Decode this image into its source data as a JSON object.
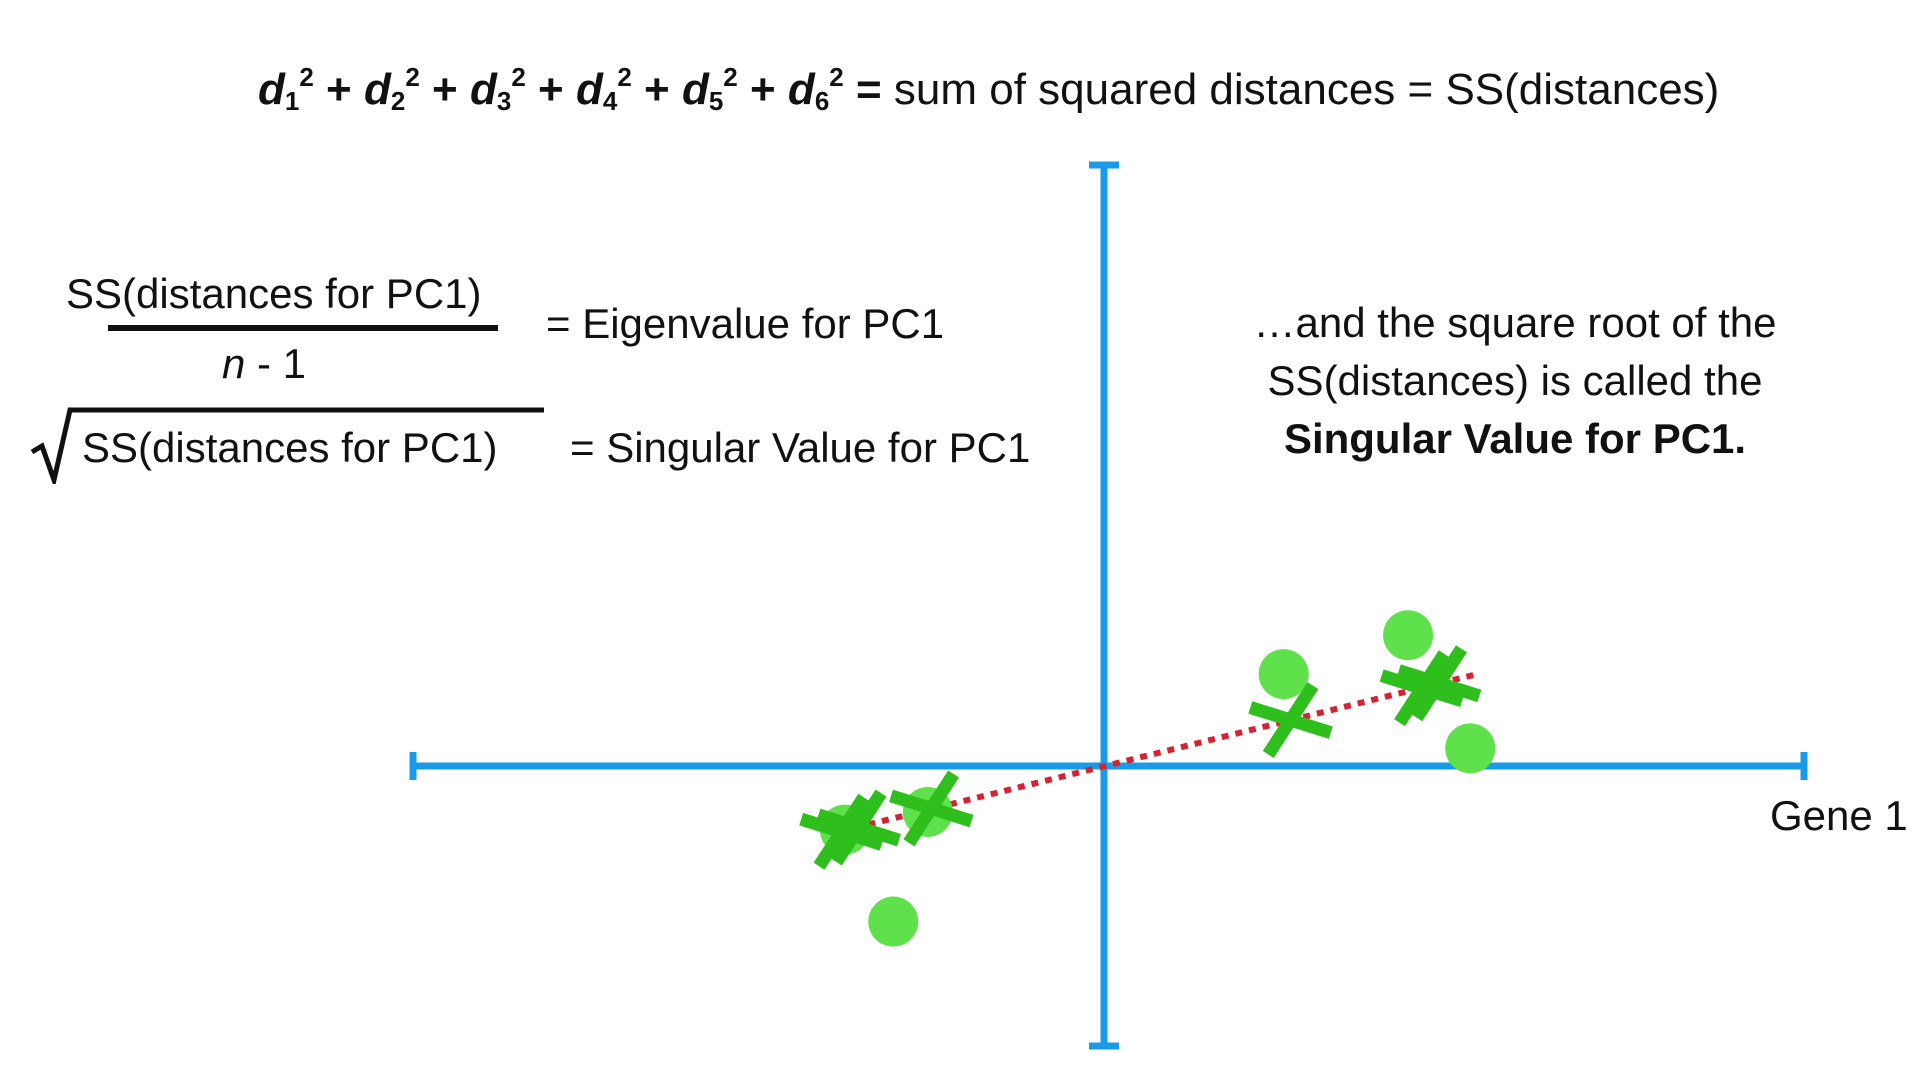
{
  "top_formula": {
    "terms": [
      {
        "base": "d",
        "sub": "1",
        "sup": "2"
      },
      {
        "base": "d",
        "sub": "2",
        "sup": "2"
      },
      {
        "base": "d",
        "sub": "3",
        "sup": "2"
      },
      {
        "base": "d",
        "sub": "4",
        "sup": "2"
      },
      {
        "base": "d",
        "sub": "5",
        "sup": "2"
      },
      {
        "base": "d",
        "sub": "6",
        "sup": "2"
      }
    ],
    "plus": " + ",
    "equals": " = ",
    "middle": "sum of squared distances",
    "right": "SS(distances)"
  },
  "eigen": {
    "numerator": "SS(distances for PC1)",
    "denominator_n": "n",
    "denominator_rest": " - 1",
    "rhs": "= Eigenvalue for PC1"
  },
  "singular": {
    "radicand": "SS(distances for PC1)",
    "rhs": "= Singular Value for PC1"
  },
  "note": {
    "line1": "…and the square root of the",
    "line2": "SS(distances) is called the",
    "line3": "Singular Value for PC1."
  },
  "axis_label_x": "Gene 1",
  "colors": {
    "axis": "#1a9be8",
    "point": "#5ee14a",
    "projection": "#2fbf1c",
    "line": "#d62333",
    "text": "#111111"
  },
  "chart_data": {
    "type": "scatter",
    "xlabel": "Gene 1",
    "ylabel": "",
    "xlim": [
      -10,
      10
    ],
    "ylim": [
      -4,
      8.5
    ],
    "points": [
      {
        "x": -3.75,
        "y": -0.9
      },
      {
        "x": -2.55,
        "y": -0.65
      },
      {
        "x": -3.05,
        "y": -2.2
      },
      {
        "x": 2.6,
        "y": 1.3
      },
      {
        "x": 4.4,
        "y": 1.85
      },
      {
        "x": 5.3,
        "y": 0.25
      }
    ],
    "projections": [
      {
        "x": -3.8,
        "y": -0.93
      },
      {
        "x": -3.55,
        "y": -0.87
      },
      {
        "x": -2.5,
        "y": -0.6
      },
      {
        "x": 2.7,
        "y": 0.65
      },
      {
        "x": 4.6,
        "y": 1.1
      },
      {
        "x": 4.85,
        "y": 1.17
      }
    ],
    "fit_line": {
      "x0": -4.0,
      "y0": -0.97,
      "x1": 5.4,
      "y1": 1.3
    }
  }
}
